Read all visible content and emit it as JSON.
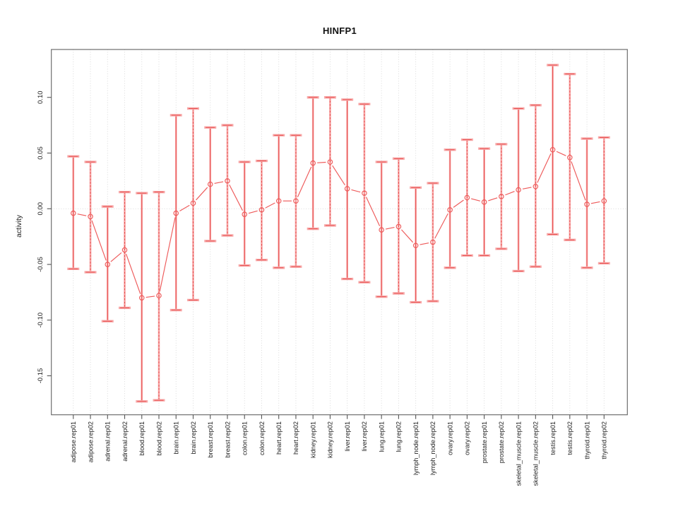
{
  "chart_data": {
    "type": "scatter",
    "title": "HINFP1",
    "xlabel": "",
    "ylabel": "activity",
    "legend": "none",
    "grid": "dotted vertical gridline per category, dotted horizontal line at y=0",
    "ylim": [
      -0.185,
      0.143
    ],
    "yticks": [
      -0.15,
      -0.1,
      -0.05,
      0.0,
      0.05,
      0.1
    ],
    "ytick_labels": [
      "-0.15",
      "-0.10",
      "-0.05",
      "0.00",
      "0.05",
      "0.10"
    ],
    "categories": [
      "adipose.rep01",
      "adipose.rep02",
      "adrenal.rep01",
      "adrenal.rep02",
      "blood.rep01",
      "blood.rep02",
      "brain.rep01",
      "brain.rep02",
      "breast.rep01",
      "breast.rep02",
      "colon.rep01",
      "colon.rep02",
      "heart.rep01",
      "heart.rep02",
      "kidney.rep01",
      "kidney.rep02",
      "liver.rep01",
      "liver.rep02",
      "lung.rep01",
      "lung.rep02",
      "lymph_node.rep01",
      "lymph_node.rep02",
      "ovary.rep01",
      "ovary.rep02",
      "prostate.rep01",
      "prostate.rep02",
      "skeletal_muscle.rep01",
      "skeletal_muscle.rep02",
      "testis.rep01",
      "testis.rep02",
      "thyroid.rep01",
      "thyroid.rep02"
    ],
    "values": [
      -0.004,
      -0.007,
      -0.05,
      -0.037,
      -0.08,
      -0.078,
      -0.004,
      0.005,
      0.022,
      0.025,
      -0.005,
      -0.001,
      0.007,
      0.007,
      0.041,
      0.042,
      0.018,
      0.014,
      -0.019,
      -0.016,
      -0.033,
      -0.03,
      -0.001,
      0.01,
      0.006,
      0.011,
      0.017,
      0.02,
      0.053,
      0.046,
      0.004,
      0.007
    ],
    "ci_upper": [
      0.047,
      0.042,
      0.002,
      0.015,
      0.014,
      0.015,
      0.084,
      0.09,
      0.073,
      0.075,
      0.042,
      0.043,
      0.066,
      0.066,
      0.1,
      0.1,
      0.098,
      0.094,
      0.042,
      0.045,
      0.019,
      0.023,
      0.053,
      0.062,
      0.054,
      0.058,
      0.09,
      0.093,
      0.129,
      0.121,
      0.063,
      0.064
    ],
    "ci_lower": [
      -0.054,
      -0.057,
      -0.101,
      -0.089,
      -0.173,
      -0.172,
      -0.091,
      -0.082,
      -0.029,
      -0.024,
      -0.051,
      -0.046,
      -0.053,
      -0.052,
      -0.018,
      -0.015,
      -0.063,
      -0.066,
      -0.079,
      -0.076,
      -0.084,
      -0.083,
      -0.053,
      -0.042,
      -0.042,
      -0.036,
      -0.056,
      -0.052,
      -0.023,
      -0.028,
      -0.053,
      -0.049
    ],
    "colors": {
      "point": "#ee5a5a",
      "line": "#ee5a5a",
      "errorbar_dash": "#e84f4f",
      "errorbar_pale": "#f7a8a8",
      "grid": "#d6d6d6",
      "axis": "#6e6e6e",
      "tick": "#555555",
      "text": "#222222"
    }
  }
}
